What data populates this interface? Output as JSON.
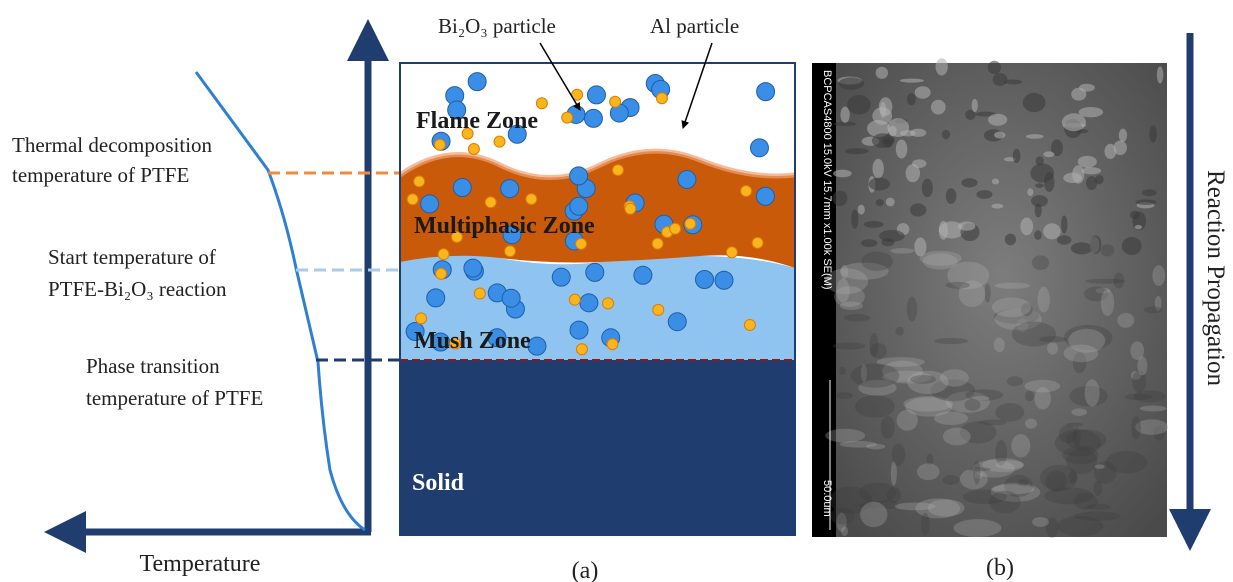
{
  "axis_label": "Temperature",
  "temperature_labels": [
    {
      "lines": [
        "Thermal decomposition",
        "temperature of PTFE"
      ]
    },
    {
      "lines": [
        "Start temperature of",
        "PTFE-Bi₂O₃ reaction"
      ]
    },
    {
      "lines": [
        "Phase transition",
        "temperature of PTFE"
      ]
    }
  ],
  "zones": [
    "Flame Zone",
    "Multiphasic Zone",
    "Mush Zone",
    "Solid"
  ],
  "particles": [
    "Bi₂O₃ particle",
    "Al particle"
  ],
  "sem_info": "BCPCAS4800 15.0kV 15.7mm x1.00k SE(M)",
  "sem_scale": "50.0um",
  "direction_label": "Reaction Propagation",
  "captions": [
    "(a)",
    "(b)"
  ]
}
